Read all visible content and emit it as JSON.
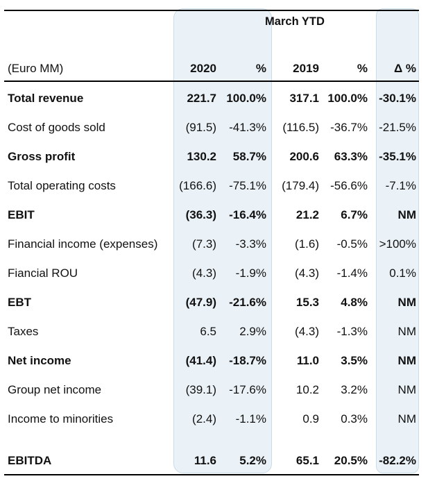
{
  "table": {
    "period_header": "March YTD",
    "columns": {
      "label": "(Euro MM)",
      "c2020": "2020",
      "pct2020": "%",
      "c2019": "2019",
      "pct2019": "%",
      "delta": "Δ %"
    },
    "rows": [
      {
        "label": "Total revenue",
        "v2020": "221.7",
        "p2020": "100.0%",
        "v2019": "317.1",
        "p2019": "100.0%",
        "delta": "-30.1%",
        "bold": true
      },
      {
        "label": "Cost of goods sold",
        "v2020": "(91.5)",
        "p2020": "-41.3%",
        "v2019": "(116.5)",
        "p2019": "-36.7%",
        "delta": "-21.5%",
        "bold": false
      },
      {
        "label": "Gross profit",
        "v2020": "130.2",
        "p2020": "58.7%",
        "v2019": "200.6",
        "p2019": "63.3%",
        "delta": "-35.1%",
        "bold": true
      },
      {
        "label": "Total operating costs",
        "v2020": "(166.6)",
        "p2020": "-75.1%",
        "v2019": "(179.4)",
        "p2019": "-56.6%",
        "delta": "-7.1%",
        "bold": false
      },
      {
        "label": "EBIT",
        "v2020": "(36.3)",
        "p2020": "-16.4%",
        "v2019": "21.2",
        "p2019": "6.7%",
        "delta": "NM",
        "bold": true
      },
      {
        "label": "Financial income (expenses)",
        "v2020": "(7.3)",
        "p2020": "-3.3%",
        "v2019": "(1.6)",
        "p2019": "-0.5%",
        "delta": ">100%",
        "bold": false
      },
      {
        "label": "Fiancial ROU",
        "v2020": "(4.3)",
        "p2020": "-1.9%",
        "v2019": "(4.3)",
        "p2019": "-1.4%",
        "delta": "0.1%",
        "bold": false
      },
      {
        "label": "EBT",
        "v2020": "(47.9)",
        "p2020": "-21.6%",
        "v2019": "15.3",
        "p2019": "4.8%",
        "delta": "NM",
        "bold": true
      },
      {
        "label": "Taxes",
        "v2020": "6.5",
        "p2020": "2.9%",
        "v2019": "(4.3)",
        "p2019": "-1.3%",
        "delta": "NM",
        "bold": false
      },
      {
        "label": "Net income",
        "v2020": "(41.4)",
        "p2020": "-18.7%",
        "v2019": "11.0",
        "p2019": "3.5%",
        "delta": "NM",
        "bold": true
      },
      {
        "label": "Group net income",
        "v2020": "(39.1)",
        "p2020": "-17.6%",
        "v2019": "10.2",
        "p2019": "3.2%",
        "delta": "NM",
        "bold": false
      },
      {
        "label": "Income to minorities",
        "v2020": "(2.4)",
        "p2020": "-1.1%",
        "v2019": "0.9",
        "p2019": "0.3%",
        "delta": "NM",
        "bold": false
      },
      {
        "label": "EBITDA",
        "v2020": "11.6",
        "p2020": "5.2%",
        "v2019": "65.1",
        "p2019": "20.5%",
        "delta": "-82.2%",
        "bold": true
      }
    ]
  }
}
